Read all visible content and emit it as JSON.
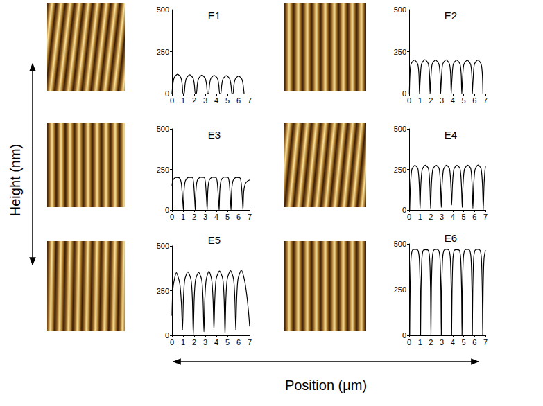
{
  "figure": {
    "ylabel": "Height (nm)",
    "xlabel": "Position (μm)"
  },
  "chart_data": [
    {
      "type": "line",
      "title": "E1",
      "color": "#000000",
      "xlim": [
        0,
        7
      ],
      "xticks": [
        0,
        1,
        2,
        3,
        4,
        5,
        6,
        7
      ],
      "ylim": [
        0,
        500
      ],
      "yticks": [
        0,
        250,
        500
      ],
      "x": [
        0,
        0.08,
        0.2,
        0.5,
        0.8,
        0.92,
        1.0,
        1.1,
        1.18,
        1.3,
        1.6,
        1.9,
        2.02,
        2.1,
        2.2,
        2.28,
        2.4,
        2.7,
        3.0,
        3.12,
        3.2,
        3.3,
        3.38,
        3.5,
        3.8,
        4.1,
        4.22,
        4.3,
        4.4,
        4.48,
        4.6,
        4.9,
        5.2,
        5.32,
        5.4,
        5.5,
        5.58,
        5.7,
        6.0,
        6.3,
        6.42,
        6.5
      ],
      "values": [
        0,
        55,
        95,
        115,
        95,
        55,
        0,
        0,
        55,
        92,
        112,
        92,
        52,
        0,
        0,
        52,
        90,
        110,
        90,
        52,
        0,
        0,
        52,
        90,
        108,
        90,
        50,
        0,
        0,
        50,
        88,
        107,
        88,
        50,
        0,
        0,
        50,
        86,
        105,
        86,
        48,
        0
      ]
    },
    {
      "type": "line",
      "title": "E2",
      "color": "#000000",
      "xlim": [
        0,
        7
      ],
      "xticks": [
        0,
        1,
        2,
        3,
        4,
        5,
        6,
        7
      ],
      "ylim": [
        0,
        500
      ],
      "yticks": [
        0,
        250,
        500
      ],
      "x": [
        0.02,
        0.07,
        0.17,
        0.48,
        0.79,
        0.9,
        0.95,
        0.99,
        1.04,
        1.14,
        1.45,
        1.76,
        1.87,
        1.92,
        1.96,
        2.01,
        2.11,
        2.42,
        2.73,
        2.84,
        2.89,
        2.93,
        2.98,
        3.08,
        3.39,
        3.7,
        3.81,
        3.86,
        3.9,
        3.95,
        4.05,
        4.36,
        4.67,
        4.78,
        4.83,
        4.87,
        4.92,
        5.02,
        5.33,
        5.64,
        5.75,
        5.8,
        5.84,
        5.89,
        5.99,
        6.3,
        6.61,
        6.72,
        6.77
      ],
      "values": [
        0,
        110,
        175,
        200,
        175,
        110,
        0,
        0,
        110,
        177,
        202,
        177,
        110,
        0,
        0,
        110,
        175,
        200,
        175,
        110,
        0,
        0,
        110,
        176,
        201,
        176,
        110,
        0,
        0,
        110,
        175,
        200,
        175,
        110,
        0,
        0,
        110,
        174,
        199,
        174,
        110,
        0,
        0,
        110,
        175,
        200,
        175,
        110,
        0
      ]
    },
    {
      "type": "line",
      "title": "E3",
      "color": "#000000",
      "xlim": [
        0,
        7
      ],
      "xticks": [
        0,
        1,
        2,
        3,
        4,
        5,
        6,
        7
      ],
      "ylim": [
        0,
        500
      ],
      "yticks": [
        0,
        250,
        500
      ],
      "x": [
        0,
        0.1,
        0.35,
        0.7,
        0.85,
        0.97,
        1.03,
        1.09,
        1.21,
        1.48,
        1.83,
        1.95,
        2.05,
        2.1,
        2.16,
        2.28,
        2.55,
        2.9,
        3.02,
        3.12,
        3.17,
        3.23,
        3.35,
        3.62,
        3.97,
        4.09,
        4.2,
        4.25,
        4.31,
        4.43,
        4.7,
        5.05,
        5.17,
        5.27,
        5.32,
        5.38,
        5.5,
        5.77,
        6.12,
        6.24,
        6.35,
        6.4,
        6.46,
        6.6,
        6.8,
        7.0
      ],
      "values": [
        150,
        185,
        200,
        195,
        160,
        60,
        0,
        120,
        180,
        200,
        200,
        165,
        60,
        0,
        120,
        182,
        201,
        200,
        165,
        60,
        0,
        120,
        182,
        201,
        200,
        165,
        60,
        0,
        120,
        183,
        202,
        200,
        165,
        60,
        0,
        120,
        180,
        200,
        198,
        165,
        60,
        0,
        110,
        160,
        178,
        185
      ]
    },
    {
      "type": "line",
      "title": "E4",
      "color": "#000000",
      "xlim": [
        0,
        7
      ],
      "xticks": [
        0,
        1,
        2,
        3,
        4,
        5,
        6,
        7
      ],
      "ylim": [
        0,
        500
      ],
      "yticks": [
        0,
        250,
        500
      ],
      "x": [
        0.05,
        0.12,
        0.25,
        0.52,
        0.8,
        0.93,
        1.0,
        1.07,
        1.2,
        1.48,
        1.77,
        1.9,
        1.97,
        2.04,
        2.17,
        2.46,
        2.75,
        2.88,
        2.95,
        3.02,
        3.15,
        3.42,
        3.7,
        3.83,
        3.9,
        3.97,
        4.1,
        4.38,
        4.67,
        4.8,
        4.87,
        4.94,
        5.07,
        5.36,
        5.65,
        5.78,
        5.85,
        5.92,
        6.05,
        6.32,
        6.6,
        6.73,
        6.8,
        6.87,
        6.95,
        7.0
      ],
      "values": [
        0,
        150,
        250,
        275,
        255,
        150,
        5,
        150,
        250,
        276,
        255,
        150,
        10,
        150,
        250,
        276,
        255,
        150,
        15,
        150,
        250,
        276,
        255,
        150,
        30,
        150,
        250,
        275,
        255,
        150,
        15,
        150,
        250,
        276,
        255,
        150,
        10,
        150,
        250,
        277,
        255,
        150,
        0,
        150,
        240,
        270
      ]
    },
    {
      "type": "line",
      "title": "E5",
      "color": "#000000",
      "xlim": [
        0,
        7
      ],
      "xticks": [
        0,
        1,
        2,
        3,
        4,
        5,
        6,
        7
      ],
      "ylim": [
        0,
        500
      ],
      "yticks": [
        0,
        250,
        500
      ],
      "x": [
        0,
        0.1,
        0.4,
        0.7,
        0.85,
        0.95,
        1.03,
        1.15,
        1.43,
        1.72,
        1.84,
        1.92,
        2.0,
        2.12,
        2.4,
        2.68,
        2.8,
        2.88,
        2.96,
        3.08,
        3.33,
        3.58,
        3.7,
        3.78,
        3.86,
        3.98,
        4.28,
        4.58,
        4.7,
        4.78,
        4.86,
        4.98,
        5.27,
        5.55,
        5.67,
        5.75,
        5.83,
        5.95,
        6.25,
        6.55,
        6.75,
        6.9,
        7.0
      ],
      "values": [
        110,
        270,
        350,
        290,
        180,
        30,
        200,
        310,
        355,
        310,
        200,
        0,
        200,
        310,
        352,
        310,
        200,
        20,
        200,
        310,
        358,
        310,
        200,
        30,
        200,
        315,
        360,
        315,
        200,
        0,
        200,
        315,
        362,
        315,
        200,
        30,
        200,
        315,
        365,
        305,
        220,
        130,
        50
      ]
    },
    {
      "type": "line",
      "title": "E6",
      "color": "#000000",
      "xlim": [
        0,
        7
      ],
      "xticks": [
        0,
        1,
        2,
        3,
        4,
        5,
        6,
        7
      ],
      "ylim": [
        0,
        500
      ],
      "yticks": [
        0,
        250,
        500
      ],
      "x": [
        0.05,
        0.09,
        0.17,
        0.3,
        0.55,
        0.8,
        0.93,
        1.01,
        1.05,
        1.09,
        1.17,
        1.3,
        1.52,
        1.75,
        1.88,
        1.96,
        2.0,
        2.04,
        2.12,
        2.25,
        2.47,
        2.7,
        2.83,
        2.91,
        2.95,
        2.99,
        3.07,
        3.2,
        3.42,
        3.65,
        3.78,
        3.86,
        3.9,
        3.94,
        4.02,
        4.15,
        4.37,
        4.6,
        4.73,
        4.81,
        4.85,
        4.89,
        4.97,
        5.1,
        5.32,
        5.55,
        5.68,
        5.76,
        5.8,
        5.84,
        5.92,
        6.05,
        6.27,
        6.5,
        6.63,
        6.71,
        6.75,
        6.79,
        6.87,
        7.0
      ],
      "values": [
        0,
        250,
        420,
        465,
        470,
        465,
        420,
        250,
        0,
        250,
        420,
        465,
        468,
        465,
        420,
        250,
        0,
        250,
        420,
        465,
        470,
        465,
        420,
        250,
        0,
        250,
        420,
        465,
        470,
        465,
        420,
        250,
        0,
        250,
        420,
        465,
        468,
        465,
        420,
        250,
        0,
        250,
        420,
        465,
        470,
        465,
        420,
        250,
        0,
        250,
        420,
        465,
        470,
        465,
        420,
        250,
        0,
        250,
        420,
        465
      ]
    }
  ]
}
